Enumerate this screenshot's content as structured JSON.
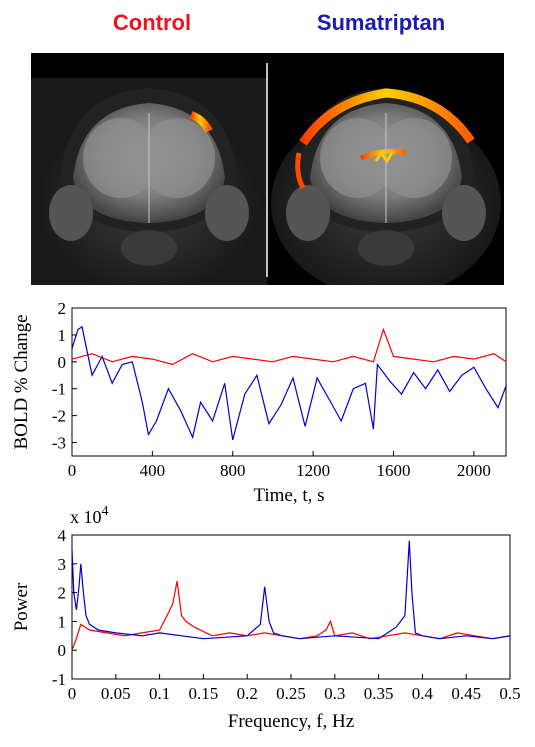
{
  "panels": {
    "left_label": "Control",
    "right_label": "Sumatriptan",
    "left_color": "#e8141e",
    "right_color": "#1a1ab4"
  },
  "chart_data": [
    {
      "type": "line",
      "xlabel": "Time, t, s",
      "ylabel": "BOLD % Change",
      "xlim": [
        0,
        2160
      ],
      "ylim": [
        -3.5,
        2
      ],
      "xticks": [
        0,
        400,
        800,
        1200,
        1600,
        2000
      ],
      "yticks": [
        2,
        1,
        0,
        -1,
        -2,
        -3
      ],
      "grid": false,
      "series": [
        {
          "color": "#ff0000",
          "x": [
            0,
            100,
            200,
            300,
            400,
            500,
            600,
            700,
            800,
            900,
            1000,
            1100,
            1200,
            1300,
            1400,
            1500,
            1550,
            1600,
            1700,
            1800,
            1900,
            2000,
            2100,
            2160
          ],
          "y": [
            0.1,
            0.3,
            0.0,
            0.2,
            0.1,
            -0.1,
            0.3,
            0.0,
            0.2,
            0.1,
            0.0,
            0.2,
            0.1,
            0.0,
            0.2,
            0.0,
            1.2,
            0.2,
            0.1,
            0.0,
            0.2,
            0.1,
            0.3,
            0.0
          ]
        },
        {
          "color": "#0000cc",
          "x": [
            0,
            30,
            50,
            100,
            150,
            200,
            250,
            300,
            350,
            380,
            420,
            480,
            540,
            600,
            640,
            700,
            760,
            800,
            860,
            920,
            980,
            1040,
            1100,
            1160,
            1220,
            1280,
            1340,
            1400,
            1460,
            1500,
            1520,
            1580,
            1640,
            1700,
            1760,
            1820,
            1880,
            1940,
            2000,
            2060,
            2120,
            2160
          ],
          "y": [
            0.5,
            1.2,
            1.3,
            -0.5,
            0.2,
            -0.8,
            -0.1,
            0.0,
            -1.5,
            -2.7,
            -2.2,
            -1.0,
            -1.8,
            -2.8,
            -1.5,
            -2.2,
            -0.8,
            -2.9,
            -1.2,
            -0.5,
            -2.3,
            -1.6,
            -0.6,
            -2.4,
            -0.6,
            -1.4,
            -2.2,
            -1.0,
            -0.8,
            -2.5,
            -0.1,
            -0.7,
            -1.2,
            -0.4,
            -1.0,
            -0.3,
            -1.1,
            -0.5,
            -0.2,
            -1.0,
            -1.7,
            -0.9
          ]
        }
      ]
    },
    {
      "type": "line",
      "xlabel": "Frequency, f, Hz",
      "ylabel": "Power",
      "yscale_label": "x 10^4",
      "xlim": [
        0,
        0.5
      ],
      "ylim": [
        -1,
        4
      ],
      "xticks": [
        0,
        0.05,
        0.1,
        0.15,
        0.2,
        0.25,
        0.3,
        0.35,
        0.4,
        0.45,
        0.5
      ],
      "xtick_labels": [
        "0",
        "0.05",
        "0.1",
        "0.15",
        "0.2",
        "0.25",
        "0.3",
        "0.35",
        "0.4",
        "0.45",
        "0.5"
      ],
      "yticks": [
        4,
        3,
        2,
        1,
        0,
        -1
      ],
      "grid": false,
      "series": [
        {
          "color": "#ff0000",
          "x": [
            0,
            0.005,
            0.01,
            0.02,
            0.04,
            0.06,
            0.08,
            0.1,
            0.11,
            0.115,
            0.12,
            0.125,
            0.13,
            0.14,
            0.16,
            0.18,
            0.2,
            0.22,
            0.24,
            0.26,
            0.28,
            0.29,
            0.295,
            0.3,
            0.32,
            0.34,
            0.36,
            0.38,
            0.4,
            0.42,
            0.44,
            0.46,
            0.48,
            0.5
          ],
          "y": [
            0.0,
            0.4,
            0.9,
            0.7,
            0.6,
            0.5,
            0.6,
            0.7,
            1.3,
            1.6,
            2.4,
            1.2,
            1.0,
            0.8,
            0.5,
            0.6,
            0.5,
            0.6,
            0.5,
            0.4,
            0.5,
            0.7,
            1.0,
            0.5,
            0.6,
            0.4,
            0.5,
            0.6,
            0.5,
            0.4,
            0.6,
            0.5,
            0.4,
            0.5
          ]
        },
        {
          "color": "#0000cc",
          "x": [
            0,
            0.002,
            0.005,
            0.008,
            0.01,
            0.013,
            0.016,
            0.02,
            0.03,
            0.05,
            0.08,
            0.1,
            0.15,
            0.2,
            0.215,
            0.22,
            0.225,
            0.23,
            0.24,
            0.26,
            0.3,
            0.35,
            0.37,
            0.38,
            0.385,
            0.388,
            0.392,
            0.4,
            0.42,
            0.45,
            0.48,
            0.5
          ],
          "y": [
            3.5,
            2.0,
            1.4,
            2.2,
            3.0,
            2.0,
            1.2,
            0.9,
            0.7,
            0.6,
            0.5,
            0.6,
            0.4,
            0.5,
            0.9,
            2.2,
            1.0,
            0.6,
            0.5,
            0.4,
            0.5,
            0.4,
            0.8,
            1.2,
            3.8,
            2.0,
            0.6,
            0.5,
            0.4,
            0.5,
            0.4,
            0.5
          ]
        }
      ]
    }
  ]
}
